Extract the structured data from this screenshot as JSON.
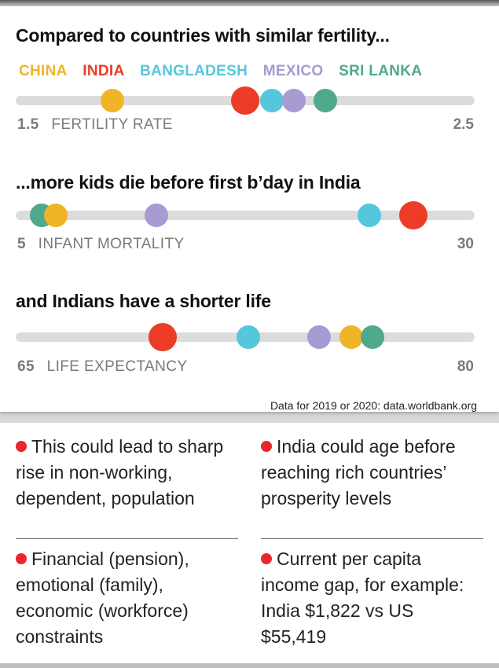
{
  "colors": {
    "china": "#f0b428",
    "india": "#ec3b27",
    "bangladesh": "#55c6dc",
    "mexico": "#a89ad2",
    "srilanka": "#4fa98c"
  },
  "legend": [
    {
      "label": "CHINA",
      "color": "#f0b428"
    },
    {
      "label": "INDIA",
      "color": "#ec3b27"
    },
    {
      "label": "BANGLADESH",
      "color": "#55c6dc"
    },
    {
      "label": "MEXICO",
      "color": "#a89ad2"
    },
    {
      "label": "SRI LANKA",
      "color": "#4fa98c"
    }
  ],
  "chart_data": [
    {
      "type": "scatter",
      "title": "Compared to countries with similar fertility...",
      "xlabel": "FERTILITY RATE",
      "xlim": [
        1.5,
        2.5
      ],
      "min_label": "1.5",
      "max_label": "2.5",
      "points": [
        {
          "country": "China",
          "value": 1.7,
          "color": "#f0b428"
        },
        {
          "country": "India",
          "value": 2.0,
          "color": "#ec3b27"
        },
        {
          "country": "Bangladesh",
          "value": 2.06,
          "color": "#55c6dc"
        },
        {
          "country": "Mexico",
          "value": 2.11,
          "color": "#a89ad2"
        },
        {
          "country": "Sri Lanka",
          "value": 2.18,
          "color": "#4fa98c"
        }
      ]
    },
    {
      "type": "scatter",
      "title": "...more kids die before first b’day in India",
      "xlabel": "INFANT MORTALITY",
      "xlim": [
        5,
        30
      ],
      "min_label": "5",
      "max_label": "30",
      "points": [
        {
          "country": "Sri Lanka",
          "value": 6.0,
          "color": "#4fa98c"
        },
        {
          "country": "China",
          "value": 6.8,
          "color": "#f0b428"
        },
        {
          "country": "Mexico",
          "value": 12.5,
          "color": "#a89ad2"
        },
        {
          "country": "Bangladesh",
          "value": 24.5,
          "color": "#55c6dc"
        },
        {
          "country": "India",
          "value": 27.0,
          "color": "#ec3b27"
        }
      ]
    },
    {
      "type": "scatter",
      "title": "and Indians have a shorter life",
      "xlabel": "LIFE EXPECTANCY",
      "xlim": [
        65,
        80
      ],
      "min_label": "65",
      "max_label": "80",
      "points": [
        {
          "country": "India",
          "value": 69.7,
          "color": "#ec3b27"
        },
        {
          "country": "Bangladesh",
          "value": 72.6,
          "color": "#55c6dc"
        },
        {
          "country": "Mexico",
          "value": 75.0,
          "color": "#a89ad2"
        },
        {
          "country": "China",
          "value": 76.1,
          "color": "#f0b428"
        },
        {
          "country": "Sri Lanka",
          "value": 76.8,
          "color": "#4fa98c"
        }
      ]
    }
  ],
  "source": "Data for 2019 or 2020: data.worldbank.org",
  "notes": [
    "This could lead to sharp rise in non-working, dependent, population",
    "India could age before reaching rich countries’ prosperity levels",
    "Financial (pension), emotional (family), economic (workforce) constraints",
    "Current per capita income gap, for example:  India $1,822 vs US $55,419"
  ]
}
